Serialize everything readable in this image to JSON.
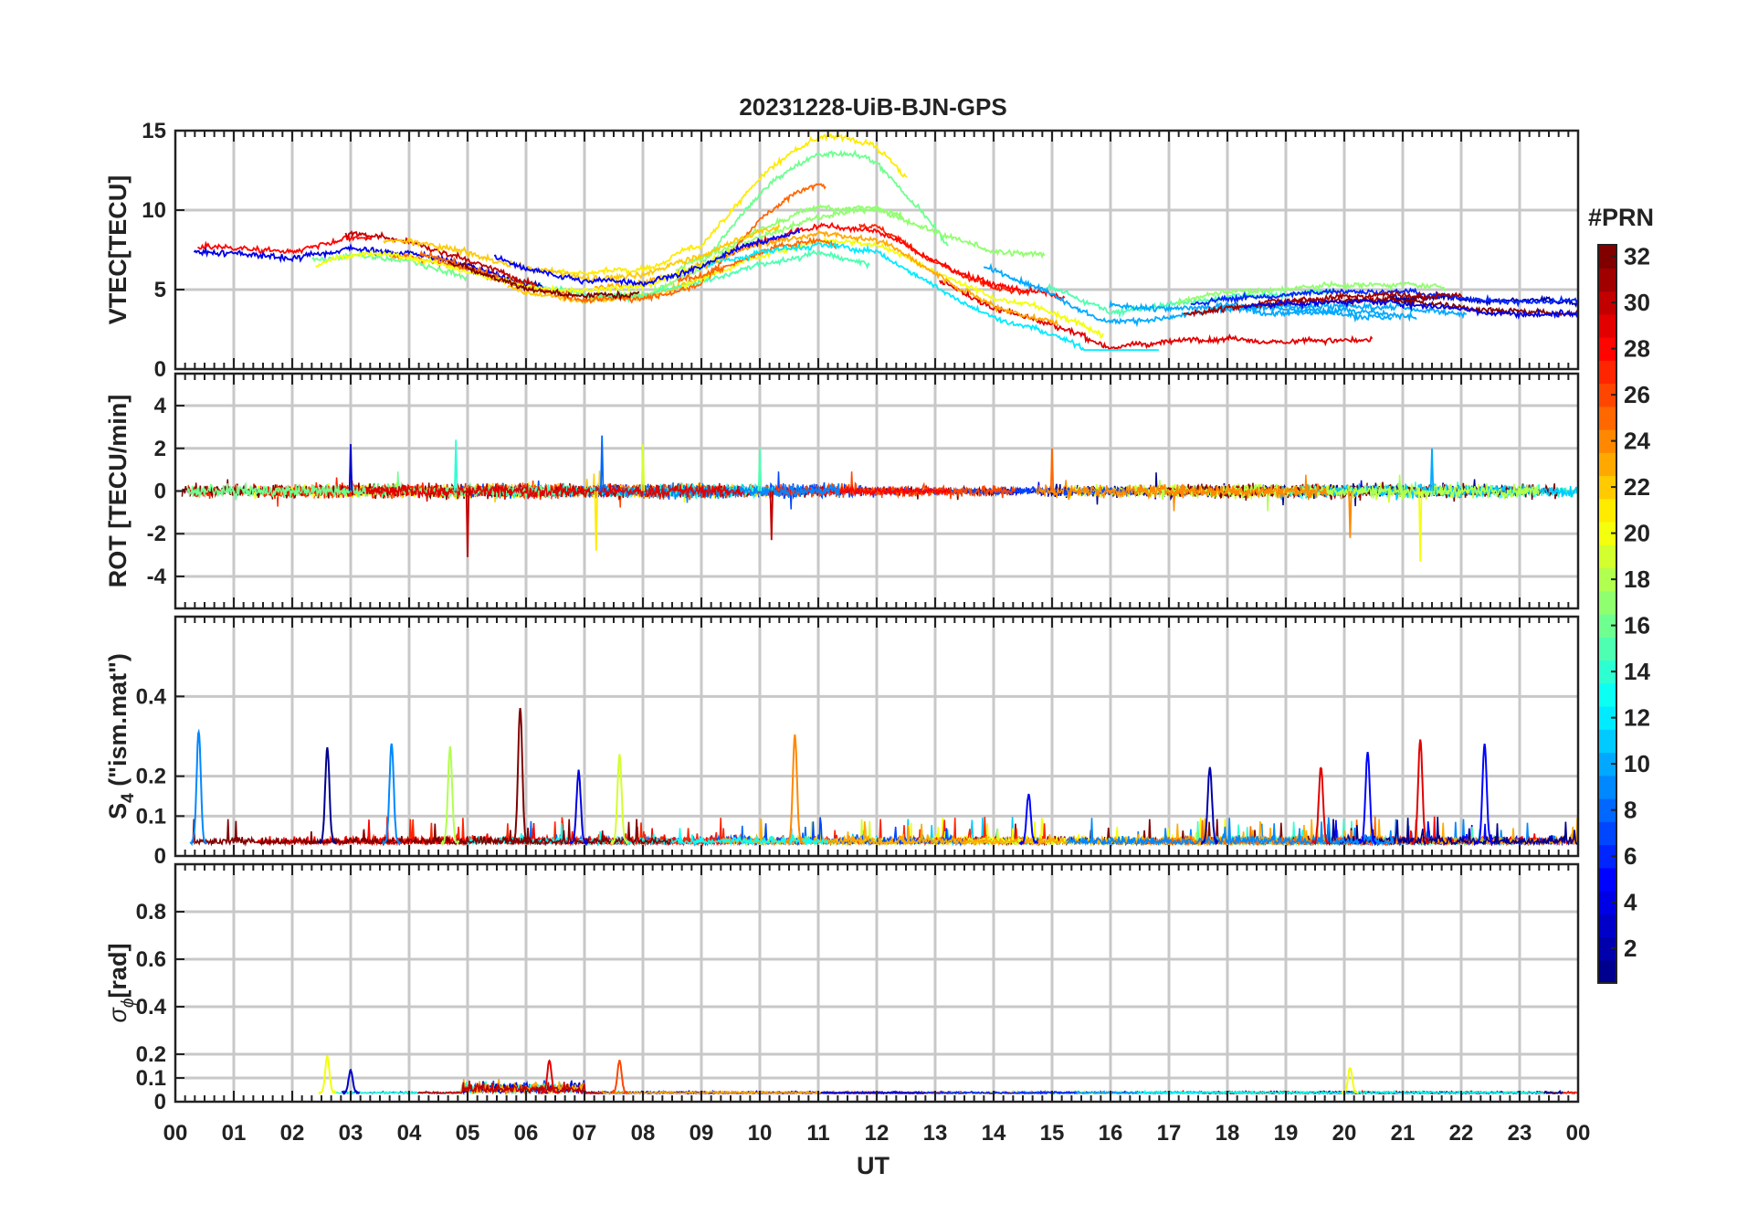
{
  "chart_data": [
    {
      "type": "line",
      "title": "20231228-UiB-BJN-GPS",
      "ylabel": "VTEC[TECU]",
      "ylim": [
        0,
        15
      ],
      "yticks": [
        0,
        5,
        10,
        15
      ],
      "xlim": [
        0,
        24
      ],
      "grid": true,
      "series_profile": [
        {
          "x": 0,
          "y": 7.0
        },
        {
          "x": 1,
          "y": 7.2
        },
        {
          "x": 2,
          "y": 7.0
        },
        {
          "x": 3,
          "y": 7.8
        },
        {
          "x": 4,
          "y": 7.6
        },
        {
          "x": 5,
          "y": 6.8
        },
        {
          "x": 6,
          "y": 5.6
        },
        {
          "x": 7,
          "y": 5.0
        },
        {
          "x": 8,
          "y": 5.2
        },
        {
          "x": 9,
          "y": 6.5
        },
        {
          "x": 10,
          "y": 8.0
        },
        {
          "x": 11,
          "y": 9.0
        },
        {
          "x": 12,
          "y": 8.8
        },
        {
          "x": 13,
          "y": 7.0
        },
        {
          "x": 14,
          "y": 5.5
        },
        {
          "x": 15,
          "y": 4.8
        },
        {
          "x": 16,
          "y": 3.6
        },
        {
          "x": 17,
          "y": 4.0
        },
        {
          "x": 18,
          "y": 4.6
        },
        {
          "x": 19,
          "y": 4.8
        },
        {
          "x": 20,
          "y": 5.0
        },
        {
          "x": 21,
          "y": 5.0
        },
        {
          "x": 22,
          "y": 4.8
        },
        {
          "x": 23,
          "y": 4.6
        },
        {
          "x": 24,
          "y": 4.8
        }
      ]
    },
    {
      "type": "line",
      "ylabel": "ROT [TECU/min]",
      "ylim": [
        -5.5,
        5.5
      ],
      "yticks": [
        -4,
        -2,
        0,
        2,
        4
      ],
      "xlim": [
        0,
        24
      ],
      "grid": true,
      "spikes": [
        {
          "x": 5.0,
          "y": -3.1
        },
        {
          "x": 4.8,
          "y": 2.4
        },
        {
          "x": 7.3,
          "y": 2.6
        },
        {
          "x": 7.2,
          "y": -2.8
        },
        {
          "x": 10.2,
          "y": -2.3
        },
        {
          "x": 10.0,
          "y": 2.0
        },
        {
          "x": 15.0,
          "y": 2.0
        },
        {
          "x": 20.1,
          "y": -2.2
        },
        {
          "x": 21.3,
          "y": -3.3
        },
        {
          "x": 21.5,
          "y": 2.0
        },
        {
          "x": 3.0,
          "y": 2.2
        },
        {
          "x": 8.0,
          "y": 2.2
        }
      ]
    },
    {
      "type": "line",
      "ylabel": "S_4 (\"ism.mat\")",
      "ylim": [
        0,
        0.6
      ],
      "yticks": [
        0,
        0.1,
        0.2,
        0.4
      ],
      "xlim": [
        0,
        24
      ],
      "grid": true,
      "peaks": [
        {
          "x": 0.4,
          "y": 0.31
        },
        {
          "x": 2.6,
          "y": 0.27
        },
        {
          "x": 3.7,
          "y": 0.28
        },
        {
          "x": 4.7,
          "y": 0.27
        },
        {
          "x": 5.9,
          "y": 0.37
        },
        {
          "x": 6.9,
          "y": 0.21
        },
        {
          "x": 7.6,
          "y": 0.25
        },
        {
          "x": 10.6,
          "y": 0.3
        },
        {
          "x": 14.6,
          "y": 0.15
        },
        {
          "x": 17.7,
          "y": 0.22
        },
        {
          "x": 19.6,
          "y": 0.22
        },
        {
          "x": 20.4,
          "y": 0.26
        },
        {
          "x": 21.3,
          "y": 0.29
        },
        {
          "x": 22.4,
          "y": 0.28
        }
      ]
    },
    {
      "type": "line",
      "ylabel": "σ_ϕ[rad]",
      "ylim": [
        0,
        1.0
      ],
      "yticks": [
        0,
        0.1,
        0.2,
        0.4,
        0.6,
        0.8
      ],
      "xlim": [
        0,
        24
      ],
      "grid": true,
      "peaks": [
        {
          "x": 2.6,
          "y": 0.19
        },
        {
          "x": 3.0,
          "y": 0.13
        },
        {
          "x": 6.4,
          "y": 0.17
        },
        {
          "x": 7.6,
          "y": 0.17
        },
        {
          "x": 20.1,
          "y": 0.14
        }
      ]
    }
  ],
  "xaxis": {
    "label": "UT",
    "ticks": [
      "00",
      "01",
      "02",
      "03",
      "04",
      "05",
      "06",
      "07",
      "08",
      "09",
      "10",
      "11",
      "12",
      "13",
      "14",
      "15",
      "16",
      "17",
      "18",
      "19",
      "20",
      "21",
      "22",
      "23",
      "00"
    ]
  },
  "colorbar": {
    "label": "#PRN",
    "min": 1,
    "max": 32,
    "ticks": [
      2,
      4,
      6,
      8,
      10,
      12,
      14,
      16,
      18,
      20,
      22,
      24,
      26,
      28,
      30,
      32
    ],
    "colormap": "jet",
    "colors": [
      "#00008f",
      "#0000ff",
      "#0080ff",
      "#00ffff",
      "#80ff80",
      "#ffff00",
      "#ff8000",
      "#ff0000",
      "#800000"
    ]
  }
}
